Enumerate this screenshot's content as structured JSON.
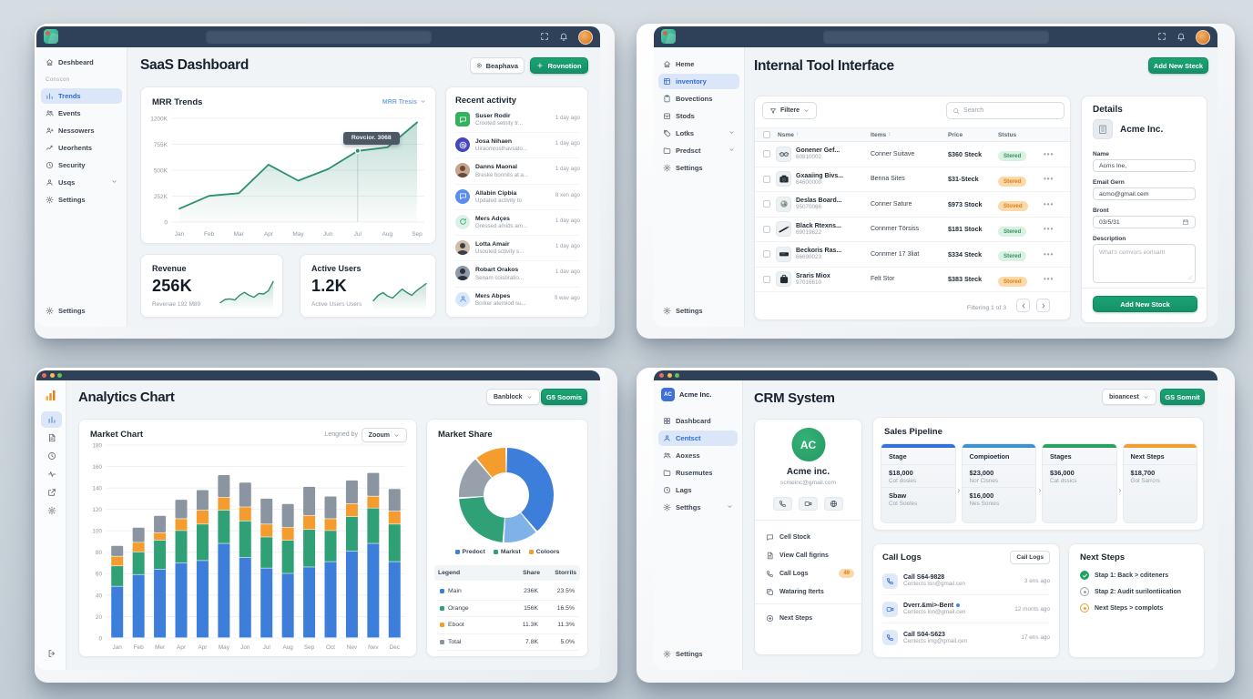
{
  "saas": {
    "title": "SaaS Dashboard",
    "topbar": {
      "icons": [
        "expand",
        "bell"
      ],
      "avatar": "orange"
    },
    "sidebar": {
      "top_item": {
        "label": "Deshbeard",
        "icon": "home"
      },
      "section": "Conscon",
      "items": [
        {
          "label": "Trends",
          "icon": "bars",
          "active": true
        },
        {
          "label": "Events",
          "icon": "users"
        },
        {
          "label": "Nessowers",
          "icon": "user-plus"
        },
        {
          "label": "Ueorhents",
          "icon": "trend"
        },
        {
          "label": "Security",
          "icon": "clock"
        },
        {
          "label": "Usqs",
          "icon": "person",
          "chevron": true
        },
        {
          "label": "Settings",
          "icon": "gear"
        }
      ],
      "bottom": {
        "label": "Settings",
        "icon": "gear"
      }
    },
    "actions": {
      "secondary": {
        "label": "Beaphava",
        "icon": "target"
      },
      "primary": {
        "label": "Rovnotion",
        "icon": "plus"
      }
    },
    "mrr": {
      "title": "MRR Trends",
      "dropdown": "MRR Tresis",
      "chart": {
        "type": "line",
        "x": [
          "Jan",
          "Feb",
          "Mar",
          "Apr",
          "May",
          "Jun",
          "Jul",
          "Aug",
          "Sep"
        ],
        "values": [
          130,
          255,
          280,
          555,
          400,
          510,
          690,
          725,
          1130
        ],
        "tick_values": [
          0,
          252,
          500,
          755,
          1200
        ],
        "y_ticks": [
          "0",
          "252K",
          "500K",
          "755K",
          "1200K"
        ],
        "color": "#2e8f74",
        "tooltip": {
          "text": "Rovcior. 3068",
          "index": 6
        }
      }
    },
    "stats": [
      {
        "title": "Revenue",
        "value": "256K",
        "sub": "Revenae 192 M89",
        "spark": [
          18,
          30,
          32,
          28,
          45,
          56,
          45,
          38,
          52,
          50,
          62,
          95
        ]
      },
      {
        "title": "Active Users",
        "value": "1.2K",
        "sub": "Active Users Users",
        "spark": [
          25,
          45,
          55,
          42,
          35,
          52,
          68,
          55,
          45,
          62,
          75,
          88
        ]
      }
    ],
    "activity": {
      "title": "Recent activity",
      "items": [
        {
          "name": "Suser Rodir",
          "desc": "Crooted setnity tr...",
          "time": "1 day ago",
          "avatar": {
            "kind": "icon",
            "icon": "message",
            "bg": "#33b15f",
            "fg": "#ffffff",
            "shape": "square"
          }
        },
        {
          "name": "Josa Nihaen",
          "desc": "Uiraomrosthavsato...",
          "time": "1 day ago",
          "avatar": {
            "kind": "icon",
            "icon": "at",
            "bg": "#4547c0",
            "fg": "#ffffff",
            "shape": "circle"
          }
        },
        {
          "name": "Danns Maonal",
          "desc": "Breske bonnits at a...",
          "time": "1 day ago",
          "avatar": {
            "kind": "photo",
            "bg": "#c5a58d",
            "fg": "#6b4a36"
          }
        },
        {
          "name": "Allabin Cipbia",
          "desc": "Updated activity to",
          "time": "8 xen ago",
          "avatar": {
            "kind": "icon",
            "icon": "message",
            "bg": "#5b8def",
            "fg": "#ffffff",
            "shape": "circle"
          }
        },
        {
          "name": "Mers Adçes",
          "desc": "Gressed amids am...",
          "time": "1 day ago",
          "avatar": {
            "kind": "icon",
            "icon": "refresh",
            "bg": "#ddf2e6",
            "fg": "#2fa56b",
            "shape": "circle"
          }
        },
        {
          "name": "Lotta Amair",
          "desc": "Usouted sctivity s...",
          "time": "1 day ago",
          "avatar": {
            "kind": "photo",
            "bg": "#cfbda9",
            "fg": "#3a3f4a"
          }
        },
        {
          "name": "Robart Orakos",
          "desc": "Senam coisbratio...",
          "time": "1 dav ago",
          "avatar": {
            "kind": "photo",
            "bg": "#8d9aa5",
            "fg": "#2d333c"
          }
        },
        {
          "name": "Mers Abpes",
          "desc": "Borker aterniod su...",
          "time": "fi wav ago",
          "avatar": {
            "kind": "icon",
            "icon": "person",
            "bg": "#d8e8fa",
            "fg": "#4f86e8",
            "shape": "circle"
          }
        }
      ]
    }
  },
  "internal": {
    "title": "Internal Tool Interface",
    "primary_action": "Add New Steck",
    "sidebar": {
      "items": [
        {
          "label": "Heme",
          "icon": "home"
        },
        {
          "label": "inventory",
          "icon": "grid",
          "active": true
        },
        {
          "label": "Bovections",
          "icon": "clipboard"
        },
        {
          "label": "Stods",
          "icon": "box"
        },
        {
          "label": "Lotks",
          "icon": "tag",
          "chevron": true
        },
        {
          "label": "Predsct",
          "icon": "folder",
          "chevron": true
        },
        {
          "label": "Settings",
          "icon": "gear"
        }
      ],
      "bottom": {
        "label": "Settings",
        "icon": "gear"
      }
    },
    "toolbar": {
      "filter_label": "Filtere",
      "search_placeholder": "Search"
    },
    "table": {
      "columns": [
        {
          "label": "Nsme",
          "sort": "up"
        },
        {
          "label": "Items",
          "sort": "both"
        },
        {
          "label": "Price"
        },
        {
          "label": "Ststus"
        }
      ],
      "rows": [
        {
          "name": "Gonener Gef...",
          "sku": "60810002",
          "item": "Conner Suitave",
          "price": "$360 Steck",
          "status": "Stered",
          "status_color": "green",
          "thumb": "glasses"
        },
        {
          "name": "Gxaaiing Bivs...",
          "sku": "64600000",
          "item": "Benna Sites",
          "price": "$31-Steck",
          "status": "Stered",
          "status_color": "orange",
          "thumb": "camera"
        },
        {
          "name": "Deslas Board...",
          "sku": "95070066",
          "item": "Conner Sature",
          "price": "$973 Stock",
          "status": "Stoved",
          "status_color": "orange",
          "thumb": "orb"
        },
        {
          "name": "Black Rtexns...",
          "sku": "69019622",
          "item": "Connmer Törsiss",
          "price": "$181 Stock",
          "status": "Stered",
          "status_color": "green",
          "thumb": "pen"
        },
        {
          "name": "Beckoris Ras...",
          "sku": "66690023",
          "item": "Connmer 17 3liat",
          "price": "$334 Steck",
          "status": "Stered",
          "status_color": "green",
          "thumb": "device"
        },
        {
          "name": "Sraris Miox",
          "sku": "97016610",
          "item": "Felt Stor",
          "price": "$383 Steck",
          "status": "Stored",
          "status_color": "orange",
          "thumb": "bag"
        }
      ],
      "footer": "Filtering 1 of 3"
    },
    "details": {
      "title": "Details",
      "company": "Acme Inc.",
      "fields": [
        {
          "label": "Name",
          "value": "Acms Ine,",
          "type": "text"
        },
        {
          "label": "Email Gern",
          "value": "acmo@gmail.cem",
          "type": "text"
        },
        {
          "label": "Bront",
          "value": "03/5/31",
          "type": "date"
        },
        {
          "label": "Description",
          "placeholder": "What's cemvors eorisartl",
          "type": "textarea"
        }
      ],
      "button": "Add New Stock"
    }
  },
  "analytics": {
    "title": "Analytics Chart",
    "dropdown": "Banblock",
    "primary_action": "G5 Soomis",
    "rail": {
      "icons": [
        "bars",
        "doc",
        "clock",
        "pulse",
        "share",
        "gear"
      ],
      "active_index": 0,
      "bottom_icon": "logout"
    },
    "market_chart": {
      "title": "Market Chart",
      "legend_label": "Lengned by",
      "legend_value": "Zooum",
      "chart": {
        "type": "stacked-bar",
        "x": [
          "Jan",
          "Feb",
          "Mer",
          "Apr",
          "Apr",
          "May",
          "Jon",
          "Jul",
          "Aug",
          "Sep",
          "Oct",
          "Nev",
          "Nev",
          "Dec"
        ],
        "series": [
          {
            "name": "blue",
            "color": "#3d7edb",
            "values": [
              48,
              59,
              64,
              70,
              72,
              88,
              75,
              65,
              60,
              66,
              71,
              81,
              88,
              71
            ]
          },
          {
            "name": "green",
            "color": "#30a077",
            "values": [
              19,
              21,
              27,
              30,
              34,
              31,
              34,
              29,
              31,
              35,
              29,
              32,
              33,
              35
            ]
          },
          {
            "name": "orange",
            "color": "#f49c2e",
            "values": [
              9,
              9,
              7,
              11,
              13,
              12,
              13,
              12,
              12,
              13,
              11,
              12,
              11,
              12
            ]
          },
          {
            "name": "gray",
            "color": "#8b95a1",
            "values": [
              10,
              14,
              16,
              18,
              19,
              21,
              23,
              24,
              22,
              27,
              21,
              22,
              22,
              21
            ]
          }
        ],
        "ymax": 180,
        "ystep": 20
      }
    },
    "market_share": {
      "title": "Market Share",
      "donut": {
        "type": "donut",
        "segments": [
          {
            "label": "Predoct",
            "color": "#3d7edb",
            "value": 39
          },
          {
            "label": "Predoct-light",
            "color": "#7fb2e8",
            "value": 12
          },
          {
            "label": "Markst",
            "color": "#30a077",
            "value": 23
          },
          {
            "label": "Total",
            "color": "#98a1ab",
            "value": 15
          },
          {
            "label": "Coloors",
            "color": "#f49c2e",
            "value": 11
          }
        ]
      },
      "legend": [
        {
          "label": "Predoct",
          "color": "#3d7edb"
        },
        {
          "label": "Markst",
          "color": "#30a077"
        },
        {
          "label": "Coloors",
          "color": "#f49c2e"
        }
      ],
      "table": {
        "columns": [
          "Legend",
          "Share",
          "Storrils"
        ],
        "rows": [
          {
            "label": "Main",
            "color": "#3d7edb",
            "share": "236K",
            "pct": "23.5%"
          },
          {
            "label": "Orange",
            "color": "#30a077",
            "share": "156K",
            "pct": "16.5%"
          },
          {
            "label": "Eboot",
            "color": "#f49c2e",
            "share": "11.3K",
            "pct": "11.3%"
          },
          {
            "label": "Total",
            "color": "#8b95a1",
            "share": "7.8K",
            "pct": "5.0%"
          }
        ]
      }
    }
  },
  "crm": {
    "title": "CRM System",
    "dropdown": "bioancest",
    "primary_action": "GS Somnit",
    "sidebar": {
      "brand": {
        "initials": "AC",
        "label": "Acme Inc."
      },
      "items": [
        {
          "label": "Dashbcard",
          "icon": "grid2"
        },
        {
          "label": "Centsct",
          "icon": "person",
          "active": true
        },
        {
          "label": "Aoxess",
          "icon": "users"
        },
        {
          "label": "Rusemutes",
          "icon": "folder"
        },
        {
          "label": "Lags",
          "icon": "clock"
        },
        {
          "label": "Setthgs",
          "icon": "gear",
          "chevron": true
        }
      ],
      "bottom": {
        "label": "Settings",
        "icon": "gear"
      }
    },
    "profile": {
      "initials": "AC",
      "name": "Acme inc.",
      "email": "scmeinc@gmail.com",
      "buttons": [
        "phone",
        "video",
        "globe"
      ],
      "menu": [
        {
          "label": "Cell Stock",
          "icon": "message"
        },
        {
          "label": "View Call figrins",
          "icon": "doc"
        },
        {
          "label": "Call Logs",
          "icon": "phone",
          "badge": "49"
        },
        {
          "label": "Wataring Iterts",
          "icon": "copy"
        }
      ],
      "footer_item": {
        "label": "Next Steps",
        "icon": "steps"
      }
    },
    "pipeline": {
      "title": "Sales Pipeline",
      "columns": [
        {
          "header": "Stage",
          "bar": "#3472d8",
          "entries": [
            {
              "value": "$18,000",
              "sub": "Cot dosies"
            },
            {
              "value": "Sbaw",
              "sub": "Cot Soeles"
            }
          ]
        },
        {
          "header": "Compioetion",
          "bar": "#3b93cf",
          "entries": [
            {
              "value": "$23,000",
              "sub": "Nor Cisnes"
            },
            {
              "value": "$16,000",
              "sub": "Nes Sonies"
            }
          ]
        },
        {
          "header": "Stages",
          "bar": "#27a35f",
          "entries": [
            {
              "value": "$36,000",
              "sub": "Cat dssics"
            }
          ]
        },
        {
          "header": "Next Steps",
          "bar": "#f0a033",
          "entries": [
            {
              "value": "$18,700",
              "sub": "Gol Sarrcrs"
            }
          ]
        }
      ]
    },
    "call_logs": {
      "title": "Call Logs",
      "button": "Cail Logs",
      "items": [
        {
          "icon": "phone",
          "title": "Call S64-9828",
          "sub": "Centects isn@gmail.cen",
          "time": "3 ens ago"
        },
        {
          "icon": "video",
          "title": "Dverr.&mi>-Bent",
          "dot": true,
          "sub": "Centects lon@gmail.cen",
          "time": "12 monts ago"
        },
        {
          "icon": "phone",
          "title": "Call S04-S623",
          "sub": "Centects img@gmail.cen",
          "time": "17 ens ago"
        }
      ]
    },
    "next_steps": {
      "title": "Next Steps",
      "items": [
        {
          "text": "Stap 1: Back > cditeners",
          "kind": "done"
        },
        {
          "text": "Stap 2: Audit surilontiication",
          "kind": "pending"
        },
        {
          "text": "Next Steps > complots",
          "kind": "warn"
        }
      ]
    }
  }
}
